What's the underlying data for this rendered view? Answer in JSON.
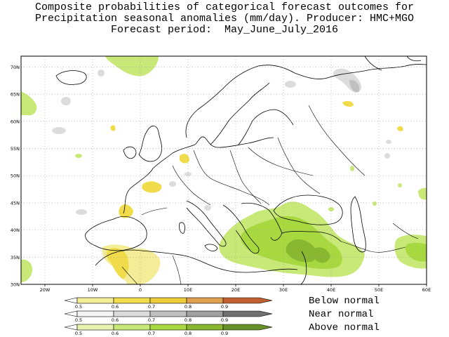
{
  "title": {
    "line1": "Composite probabilities of categorical forecast outcomes for",
    "line2": "Precipitation seasonal anomalies (mm/day). Producer: HMC+MGO",
    "line3": "Forecast period:  May_June_July_2016"
  },
  "map": {
    "lon_range": [
      -25,
      60
    ],
    "lat_range": [
      30,
      72
    ],
    "lon_ticks": [
      "20W",
      "10W",
      "0",
      "10E",
      "20E",
      "30E",
      "40E",
      "50E",
      "60E"
    ],
    "lat_ticks": [
      "30N",
      "35N",
      "40N",
      "45N",
      "50N",
      "55N",
      "60N",
      "65N",
      "70N"
    ],
    "grid": "dotted"
  },
  "legend": {
    "categories": [
      {
        "name": "Below normal",
        "colors": [
          "#f4ec96",
          "#f0dc4a",
          "#eccc3a",
          "#e0a050",
          "#c06030"
        ]
      },
      {
        "name": "Near normal",
        "colors": [
          "#f4f4f4",
          "#dcdcdc",
          "#c0c0c0",
          "#a0a0a0",
          "#707070"
        ]
      },
      {
        "name": "Above normal",
        "colors": [
          "#e6f4b0",
          "#c8e878",
          "#a8d840",
          "#88b830",
          "#689028"
        ]
      }
    ],
    "levels": [
      "0.5",
      "0.6",
      "0.7",
      "0.8",
      "0.9"
    ]
  }
}
